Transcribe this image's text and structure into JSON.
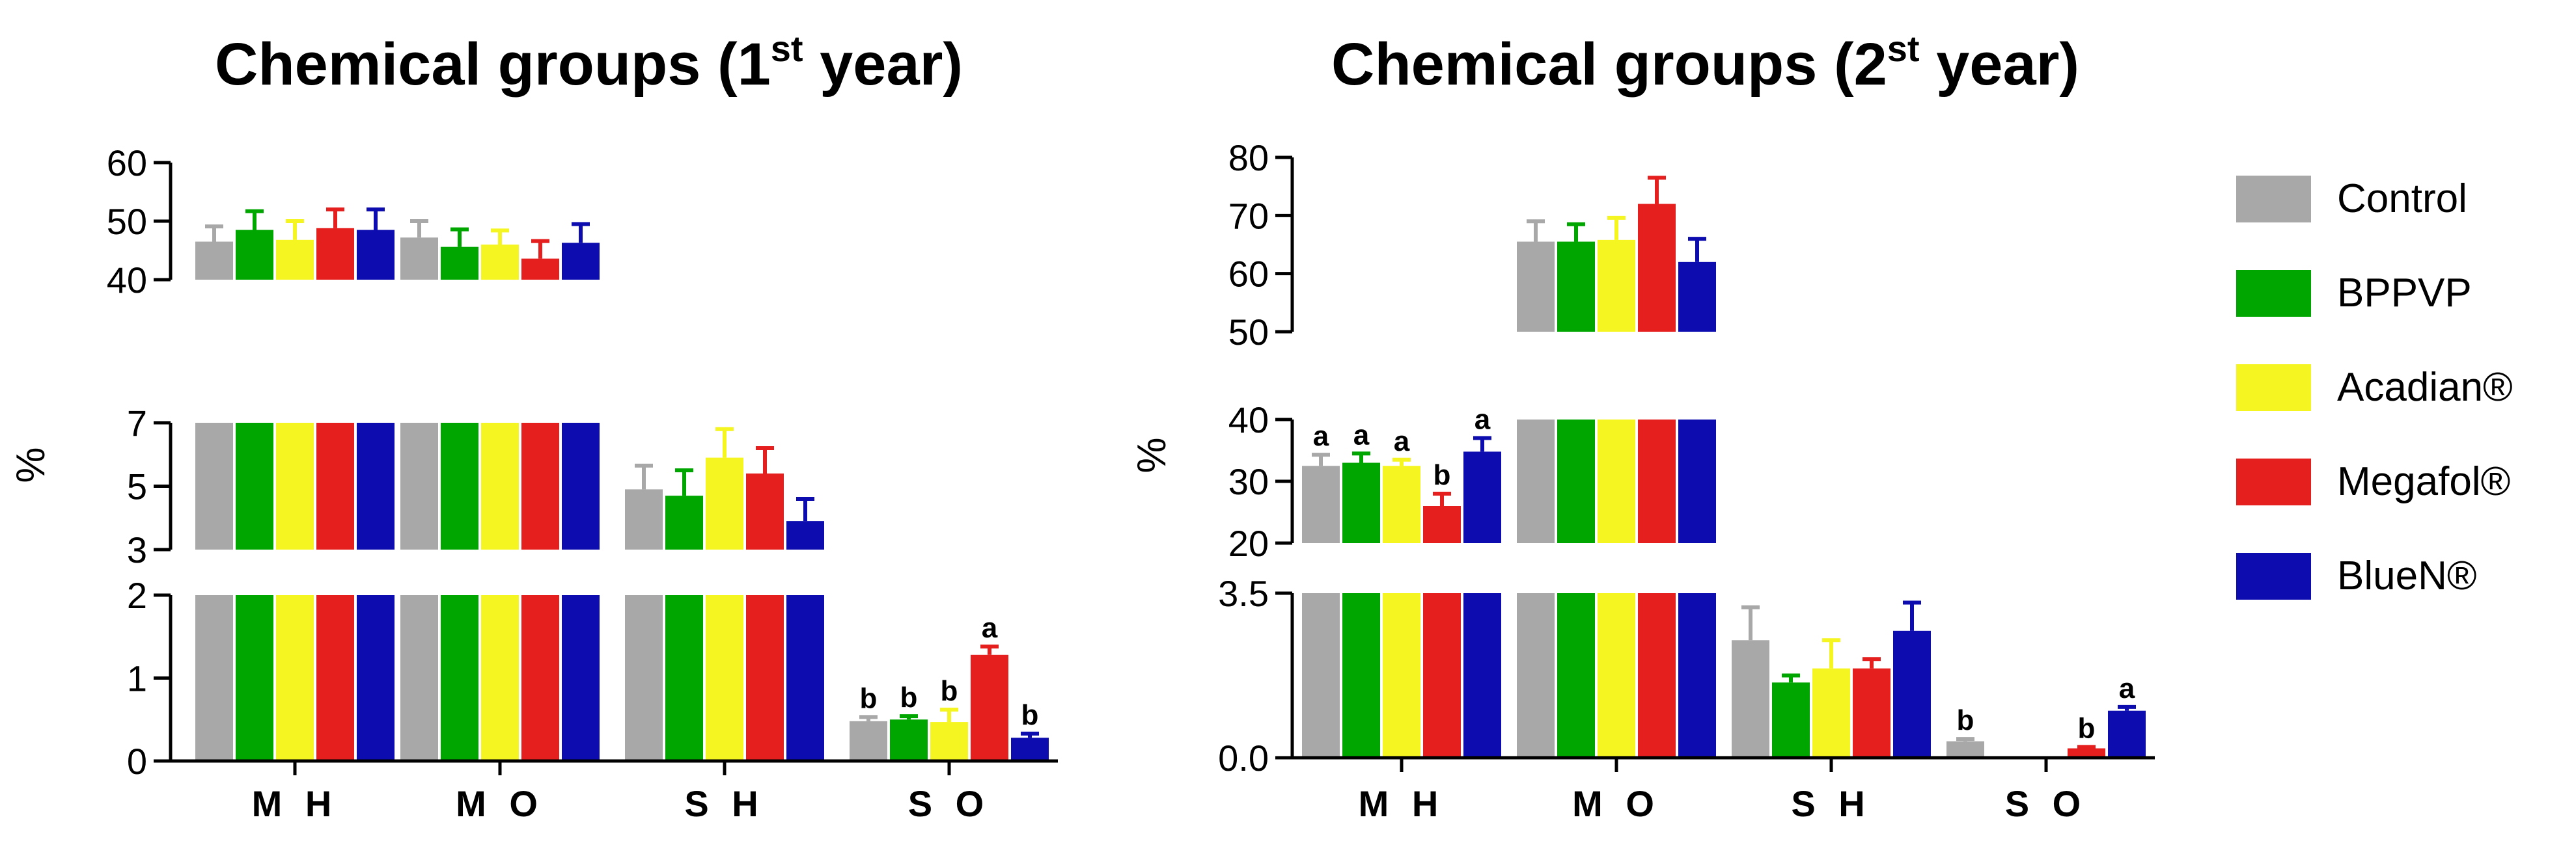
{
  "chart_data": [
    {
      "type": "bar",
      "title_main": "Chemical groups (1",
      "title_sup": "st",
      "title_end": " year)",
      "ylabel": "%",
      "categories": [
        "M H",
        "M O",
        "S H",
        "S O"
      ],
      "series": [
        {
          "name": "Control",
          "color": "#a8a8a8",
          "values": [
            46.5,
            47.2,
            4.9,
            0.48
          ],
          "errors": [
            2.6,
            2.8,
            0.75,
            0.05
          ],
          "letters": [
            "",
            "",
            "",
            "b"
          ]
        },
        {
          "name": "BPPVP",
          "color": "#00a600",
          "values": [
            48.5,
            45.6,
            4.7,
            0.5
          ],
          "errors": [
            3.2,
            3.0,
            0.8,
            0.04
          ],
          "letters": [
            "",
            "",
            "",
            "b"
          ]
        },
        {
          "name": "Acadian®",
          "color": "#f5f522",
          "values": [
            46.8,
            46.0,
            5.9,
            0.47
          ],
          "errors": [
            3.2,
            2.4,
            0.9,
            0.15
          ],
          "letters": [
            "",
            "",
            "",
            "b"
          ]
        },
        {
          "name": "Megafol®",
          "color": "#e51e1e",
          "values": [
            48.8,
            43.6,
            5.4,
            1.28
          ],
          "errors": [
            3.2,
            3.0,
            0.8,
            0.1
          ],
          "letters": [
            "",
            "",
            "",
            "a"
          ]
        },
        {
          "name": "BlueN®",
          "color": "#0d0daf",
          "values": [
            48.5,
            46.3,
            3.9,
            0.28
          ],
          "errors": [
            3.5,
            3.2,
            0.7,
            0.05
          ],
          "letters": [
            "",
            "",
            "",
            "b"
          ]
        }
      ],
      "y_segments": [
        {
          "range": [
            40,
            60
          ],
          "ticks": [
            "40",
            "50",
            "60"
          ]
        },
        {
          "range": [
            3,
            7
          ],
          "ticks": [
            "3",
            "5",
            "7"
          ]
        },
        {
          "range": [
            0,
            2
          ],
          "ticks": [
            "0",
            "1",
            "2"
          ]
        }
      ]
    },
    {
      "type": "bar",
      "title_main": "Chemical groups (2",
      "title_sup": "st",
      "title_end": " year)",
      "ylabel": "%",
      "categories": [
        "M H",
        "M O",
        "S H",
        "S O"
      ],
      "series": [
        {
          "name": "Control",
          "color": "#a8a8a8",
          "values": [
            32.5,
            65.5,
            2.5,
            0.35
          ],
          "errors": [
            1.8,
            3.5,
            0.7,
            0.05
          ],
          "letters": [
            "a",
            "",
            "",
            "b"
          ]
        },
        {
          "name": "BPPVP",
          "color": "#00a600",
          "values": [
            33.0,
            65.5,
            1.6,
            0.0
          ],
          "errors": [
            1.5,
            3.0,
            0.15,
            0.0
          ],
          "letters": [
            "a",
            "",
            "",
            ""
          ]
        },
        {
          "name": "Acadian®",
          "color": "#f5f522",
          "values": [
            32.5,
            65.8,
            1.9,
            0.0
          ],
          "errors": [
            1.0,
            3.8,
            0.6,
            0.0
          ],
          "letters": [
            "a",
            "",
            "",
            ""
          ]
        },
        {
          "name": "Megafol®",
          "color": "#e51e1e",
          "values": [
            26.0,
            72.0,
            1.9,
            0.2
          ],
          "errors": [
            2.0,
            4.5,
            0.2,
            0.03
          ],
          "letters": [
            "b",
            "",
            "",
            "b"
          ]
        },
        {
          "name": "BlueN®",
          "color": "#0d0daf",
          "values": [
            34.8,
            62.0,
            2.7,
            1.0
          ],
          "errors": [
            2.2,
            4.0,
            0.6,
            0.08
          ],
          "letters": [
            "a",
            "",
            "",
            "a"
          ]
        }
      ],
      "y_segments": [
        {
          "range": [
            50,
            80
          ],
          "ticks": [
            "50",
            "60",
            "70",
            "80"
          ]
        },
        {
          "range": [
            20,
            40
          ],
          "ticks": [
            "20",
            "30",
            "40"
          ]
        },
        {
          "range": [
            0,
            3.5
          ],
          "ticks": [
            "0.0",
            "3.5"
          ]
        }
      ]
    }
  ],
  "legend": [
    {
      "label": "Control",
      "color": "#a8a8a8"
    },
    {
      "label": "BPPVP",
      "color": "#00a600"
    },
    {
      "label": "Acadian®",
      "color": "#f5f522"
    },
    {
      "label": "Megafol®",
      "color": "#e51e1e"
    },
    {
      "label": "BlueN®",
      "color": "#0d0daf"
    }
  ]
}
